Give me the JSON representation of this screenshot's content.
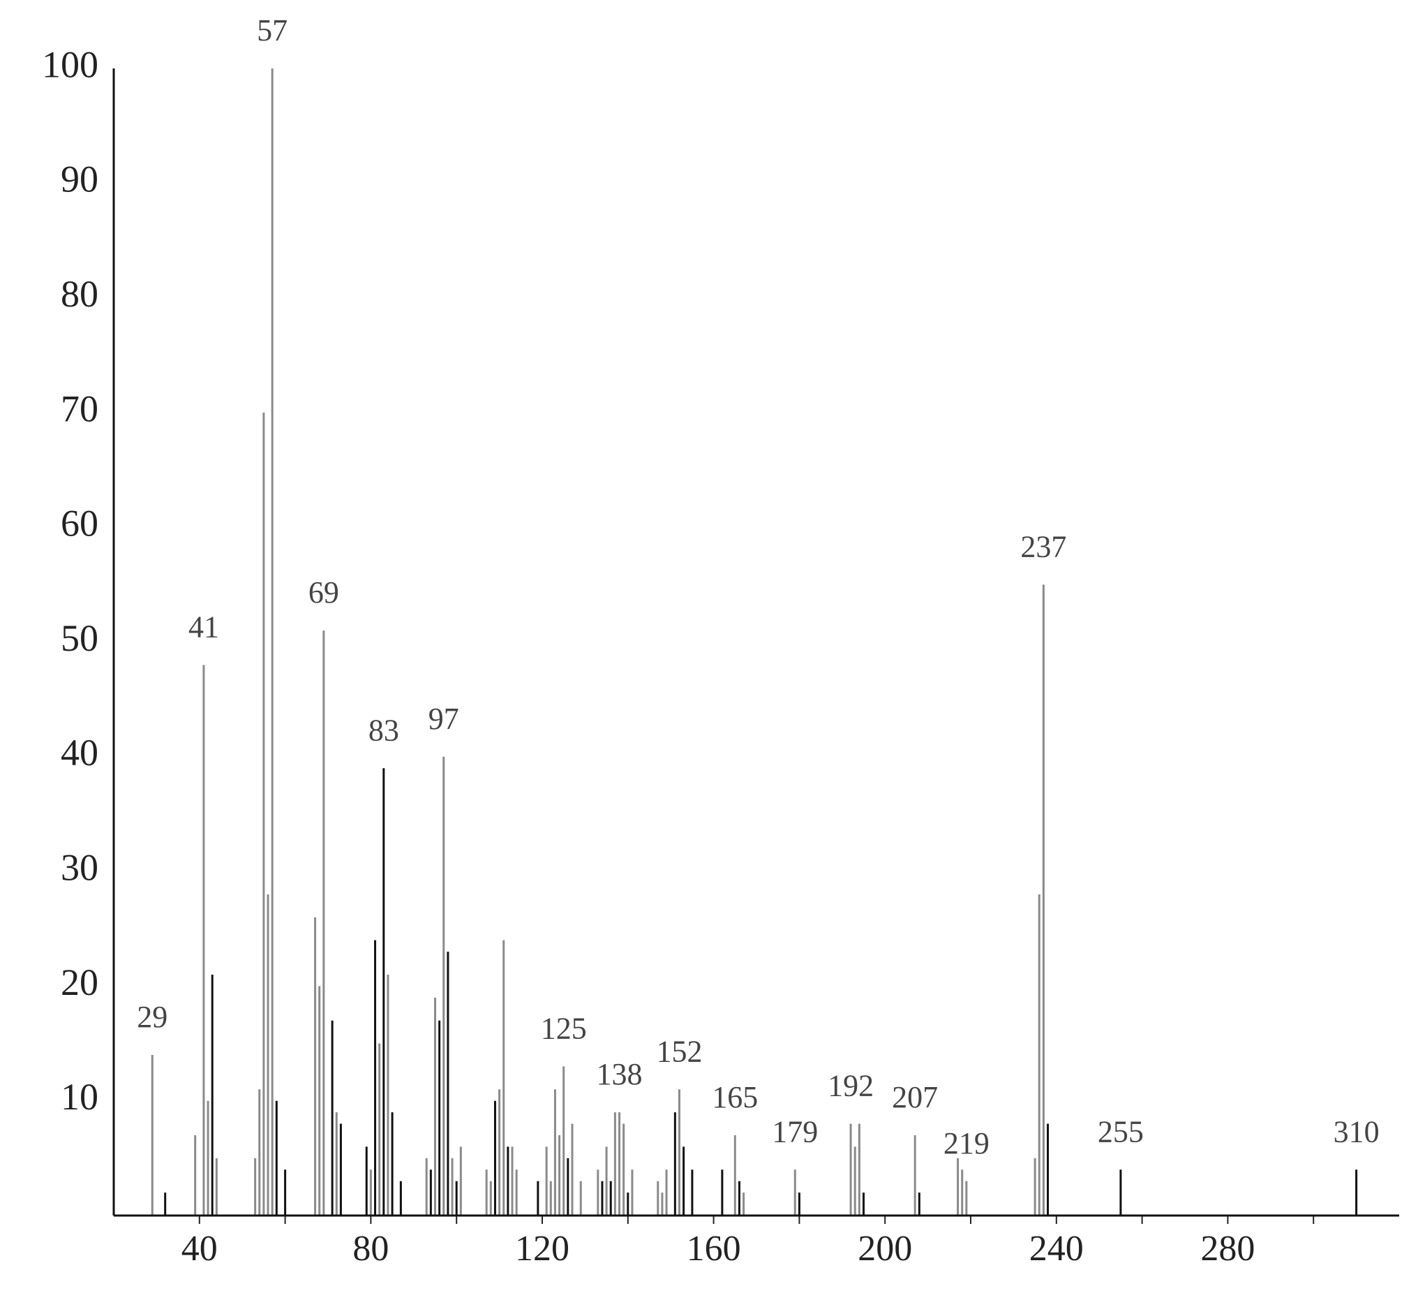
{
  "chart_data": {
    "type": "spectrum",
    "xlim": [
      20,
      320
    ],
    "ylim": [
      0,
      100
    ],
    "xticks": [
      40,
      80,
      120,
      160,
      200,
      240,
      280
    ],
    "xminorticks": [
      60,
      100,
      140,
      180,
      220,
      260,
      300
    ],
    "yticks": [
      10,
      20,
      30,
      40,
      50,
      60,
      70,
      80,
      90,
      100
    ],
    "series": [
      {
        "color": "#8a8a8a",
        "x": [
          29,
          39,
          41,
          42,
          44,
          53,
          54,
          55,
          56,
          57,
          67,
          68,
          69,
          72,
          80,
          82,
          84,
          93,
          95,
          97,
          99,
          101,
          107,
          108,
          110,
          111,
          113,
          114,
          121,
          122,
          123,
          124,
          125,
          127,
          129,
          133,
          135,
          137,
          138,
          139,
          141,
          147,
          148,
          149,
          152,
          165,
          167,
          179,
          192,
          193,
          194,
          207,
          217,
          218,
          219,
          235,
          236,
          237
        ],
        "values": [
          14,
          7,
          48,
          10,
          5,
          5,
          11,
          70,
          28,
          100,
          26,
          20,
          51,
          9,
          4,
          15,
          21,
          5,
          19,
          40,
          5,
          6,
          4,
          3,
          11,
          24,
          6,
          4,
          6,
          3,
          11,
          7,
          13,
          8,
          3,
          4,
          6,
          9,
          9,
          8,
          4,
          3,
          2,
          4,
          11,
          7,
          2,
          4,
          8,
          6,
          8,
          7,
          5,
          4,
          3,
          5,
          28,
          55
        ]
      },
      {
        "color": "#111111",
        "x": [
          32,
          43,
          58,
          60,
          71,
          73,
          79,
          81,
          83,
          85,
          87,
          94,
          96,
          98,
          100,
          109,
          112,
          119,
          126,
          134,
          136,
          140,
          151,
          153,
          155,
          162,
          166,
          180,
          195,
          208,
          238,
          255,
          310
        ],
        "values": [
          2,
          21,
          10,
          4,
          17,
          8,
          6,
          24,
          39,
          9,
          3,
          4,
          17,
          23,
          3,
          10,
          6,
          3,
          5,
          3,
          3,
          2,
          9,
          6,
          4,
          4,
          3,
          2,
          2,
          2,
          8,
          4,
          4
        ]
      }
    ],
    "peak_labels": [
      29,
      41,
      57,
      69,
      83,
      97,
      125,
      138,
      152,
      165,
      179,
      192,
      207,
      219,
      237,
      255,
      310
    ]
  }
}
